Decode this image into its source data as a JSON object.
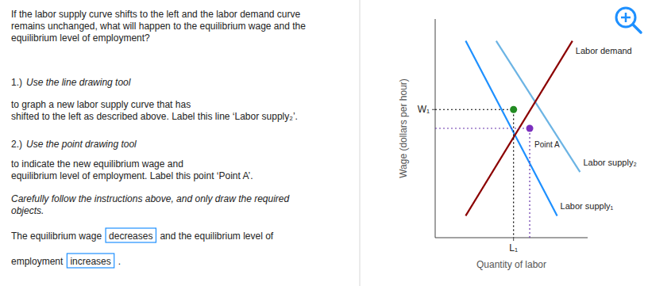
{
  "chart_data": {
    "type": "line",
    "xlabel": "Quantity of labor",
    "ylabel": "Wage (dollars per hour)",
    "xlim": [
      0,
      10
    ],
    "ylim": [
      0,
      10
    ],
    "xticks": [
      {
        "value": 5.14,
        "label": "L₁"
      }
    ],
    "yticks": [
      {
        "value": 5.86,
        "label": "W₁"
      }
    ],
    "series": [
      {
        "name": "Labor supply₁",
        "type": "line",
        "color": "#1E90FF",
        "x": [
          2,
          8
        ],
        "values": [
          9,
          1
        ]
      },
      {
        "name": "Labor supply₂",
        "type": "line",
        "color": "#6CB4E4",
        "x": [
          4,
          9.5
        ],
        "values": [
          9,
          3
        ]
      },
      {
        "name": "Labor demand",
        "type": "line",
        "color": "#8B0000",
        "x": [
          2,
          9
        ],
        "values": [
          1,
          9
        ]
      },
      {
        "type": "line",
        "line_style": "dotted",
        "color": "#000000",
        "x": [
          0,
          5.14,
          5.14
        ],
        "values": [
          5.86,
          5.86,
          0
        ]
      },
      {
        "type": "line",
        "line_style": "dotted",
        "color": "#6633AA",
        "x": [
          0,
          6.2,
          6.2
        ],
        "values": [
          5.0,
          5.0,
          0
        ]
      },
      {
        "type": "scatter",
        "color": "#228B22",
        "x": [
          5.14
        ],
        "values": [
          5.86
        ]
      },
      {
        "name": "Point A",
        "type": "scatter",
        "color": "#7B2FBE",
        "x": [
          6.2
        ],
        "values": [
          5.0
        ]
      }
    ],
    "annotations": [
      "If the labor supply curve shifts to the left and the labor demand curve\nremains unchanged, what will happen to the equilibrium wage and the\nequilibrium level of employment?",
      "1.)",
      "Use the line drawing tool",
      "to graph a new labor supply curve that has\nshifted to the left as described above. Label this line ‘Labor supply₂’.",
      "2.)",
      "Use the point drawing tool",
      "to indicate the new equilibrium wage and\nequilibrium level of employment. Label this point ‘Point A’.",
      "Carefully follow the instructions above, and only draw the required\nobjects.",
      "The equilibrium wage",
      "decreases",
      "and the equilibrium level of",
      "employment",
      "increases",
      "."
    ]
  }
}
